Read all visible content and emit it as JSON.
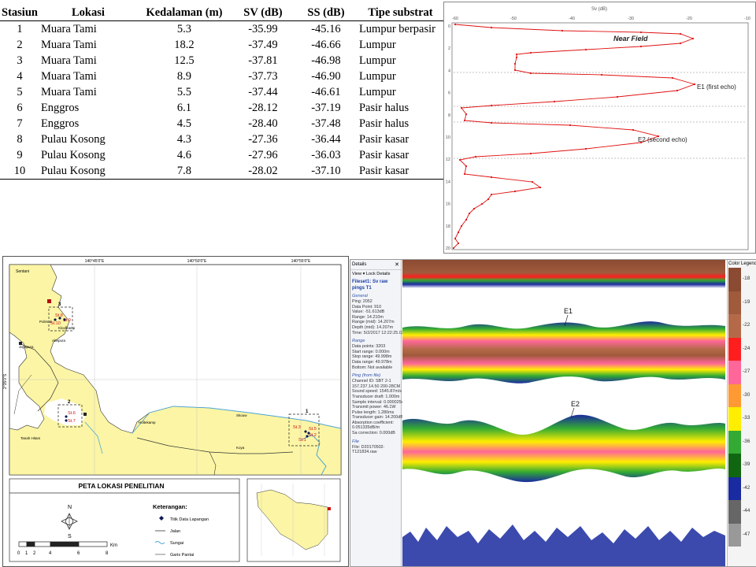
{
  "table": {
    "headers": [
      "Stasiun",
      "Lokasi",
      "Kedalaman (m)",
      "SV (dB)",
      "SS (dB)",
      "Tipe substrat"
    ],
    "rows": [
      [
        "1",
        "Muara Tami",
        "5.3",
        "-35.99",
        "-45.16",
        "Lumpur berpasir"
      ],
      [
        "2",
        "Muara Tami",
        "18.2",
        "-37.49",
        "-46.66",
        "Lumpur"
      ],
      [
        "3",
        "Muara Tami",
        "12.5",
        "-37.81",
        "-46.98",
        "Lumpur"
      ],
      [
        "4",
        "Muara Tami",
        "8.9",
        "-37.73",
        "-46.90",
        "Lumpur"
      ],
      [
        "5",
        "Muara Tami",
        "5.5",
        "-37.44",
        "-46.61",
        "Lumpur"
      ],
      [
        "6",
        "Enggros",
        "6.1",
        "-28.12",
        "-37.19",
        "Pasir halus"
      ],
      [
        "7",
        "Enggros",
        "4.5",
        "-28.40",
        "-37.48",
        "Pasir halus"
      ],
      [
        "8",
        "Pulau Kosong",
        "4.3",
        "-27.36",
        "-36.44",
        "Pasir kasar"
      ],
      [
        "9",
        "Pulau Kosong",
        "4.6",
        "-27.96",
        "-36.03",
        "Pasir kasar"
      ],
      [
        "10",
        "Pulau Kosong",
        "7.8",
        "-28.02",
        "-37.10",
        "Pasir kasar"
      ]
    ]
  },
  "profile": {
    "axis_title": "Sv (dB)",
    "x_ticks": [
      "-60",
      "-50",
      "-40",
      "-30",
      "-20",
      "-10"
    ],
    "y_ticks": [
      "0",
      "2",
      "4",
      "6",
      "8",
      "10",
      "12",
      "14",
      "16",
      "18",
      "20"
    ],
    "labels": {
      "near_field": "Near Field",
      "e1": "E1 (first echo)",
      "e2": "E2 (second echo)"
    }
  },
  "map": {
    "lon_ticks": [
      "140°45'0\"E",
      "140°50'0\"E",
      "140°55'0\"E"
    ],
    "lat_tick": "2°35'0\"S",
    "places": [
      "Sentani",
      "Kloofkamp",
      "Abepura",
      "Polimak",
      "Jayapura",
      "Skouw",
      "Holtekamp",
      "Koya",
      "Tanah Hitam"
    ],
    "box_labels": [
      "3",
      "2",
      "1"
    ],
    "stations": [
      "St.8",
      "St.9",
      "St.10",
      "St.6",
      "St.7",
      "St.3",
      "St.5",
      "St.2",
      "St.1"
    ],
    "title": "PETA LOKASI PENELITIAN",
    "legend_title": "Keterangan:",
    "legend_items": [
      "Titik Data Lapangan",
      "Jalan",
      "Sungai",
      "Garis Pantai"
    ],
    "scale_labels": [
      "0",
      "1",
      "2",
      "4",
      "6",
      "8"
    ],
    "scale_unit": "Km",
    "colors": {
      "land": "#fbf5a5",
      "sea": "#ffffff",
      "road": "#333333",
      "river": "#4fa8d8"
    }
  },
  "echogram": {
    "panel_title": "Details",
    "view_label": "View ▾   Lock Details",
    "file_title": "Fileset1: Sv raw pings T1",
    "general_title": "General",
    "general_lines": [
      "Ping: 2052",
      "Data Point: 910",
      "Value: -51.613dB",
      "Range: 14.210m",
      "Range (mid): 14.207m",
      "Depth (mid): 14.207m",
      "Time: 5/2/2017 12:22:25.034"
    ],
    "range_title": "Range",
    "range_lines": [
      "Data points: 3203",
      "Start range: 0.000m",
      "Stop range: 49.998m",
      "Data range: 49.978m",
      "Bottom: Not available"
    ],
    "ping_title": "Ping (from file)",
    "ping_lines": [
      "Channel ID: SBT 2-1",
      "157.237.14.50 200-28CM",
      "Sound speed: 1545.87m/s",
      "Transducer draft: 1.000m",
      "Sample interval: 0.000025s",
      "Transmit power: 46.1W",
      "Pulse length: 1.280ms",
      "Transducer gain: 14.200dB",
      "Absorption coefficient:",
      "0.051335dB/m",
      "Sa correction: 0.000dB"
    ],
    "file_title2": "File",
    "file_lines": [
      "File: D20170502-",
      "T121834.raw"
    ],
    "e1_label": "E1",
    "e2_label": "E2",
    "legend_title": "Color Legend",
    "legend_values": [
      "-18",
      "-19",
      "-22",
      "-24",
      "-27",
      "-30",
      "-33",
      "-36",
      "-39",
      "-42",
      "-44",
      "-47"
    ],
    "legend_colors": [
      "#8b4a32",
      "#a05a3c",
      "#b46a48",
      "#ff1e1e",
      "#ff6699",
      "#ff9933",
      "#ffee00",
      "#33aa33",
      "#116611",
      "#1a2aa0",
      "#666666",
      "#999999"
    ]
  }
}
